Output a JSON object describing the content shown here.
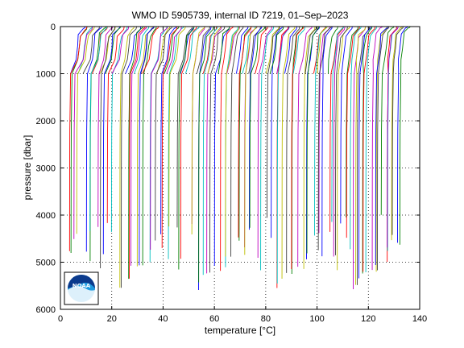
{
  "chart_data": {
    "type": "line",
    "title": "WMO ID 5905739, internal ID 7219, 01–Sep–2023",
    "xlabel": "temperature [°C]",
    "ylabel": "pressure [dbar]",
    "xlim": [
      0,
      140
    ],
    "ylim": [
      6000,
      0
    ],
    "y_reversed": true,
    "grid": true,
    "xticks": [
      0,
      20,
      40,
      60,
      80,
      100,
      120,
      140
    ],
    "yticks": [
      0,
      1000,
      2000,
      3000,
      4000,
      5000,
      6000
    ],
    "profile_offset_step": 1,
    "profiles": {
      "count": 128,
      "offset_step_degC": 1,
      "first_surface_temp": 9.5,
      "last_surface_temp": 137,
      "deep_pressures_sample": [
        4000,
        4900,
        4800,
        4600,
        4500,
        4450,
        4550,
        4700,
        4900,
        4750,
        4300,
        4200,
        4900,
        5100,
        4900,
        4200,
        4100,
        4400,
        4700,
        5550,
        5500,
        5400,
        5300,
        5250,
        5200,
        5150,
        5100,
        5200,
        5100,
        5050
      ],
      "colors": [
        "#0000ff",
        "#008000",
        "#ff0000",
        "#00bfbf",
        "#bf00bf",
        "#bfbf00",
        "#404040"
      ]
    }
  },
  "logo": {
    "name": "noaa-logo",
    "text": "NOAA"
  }
}
